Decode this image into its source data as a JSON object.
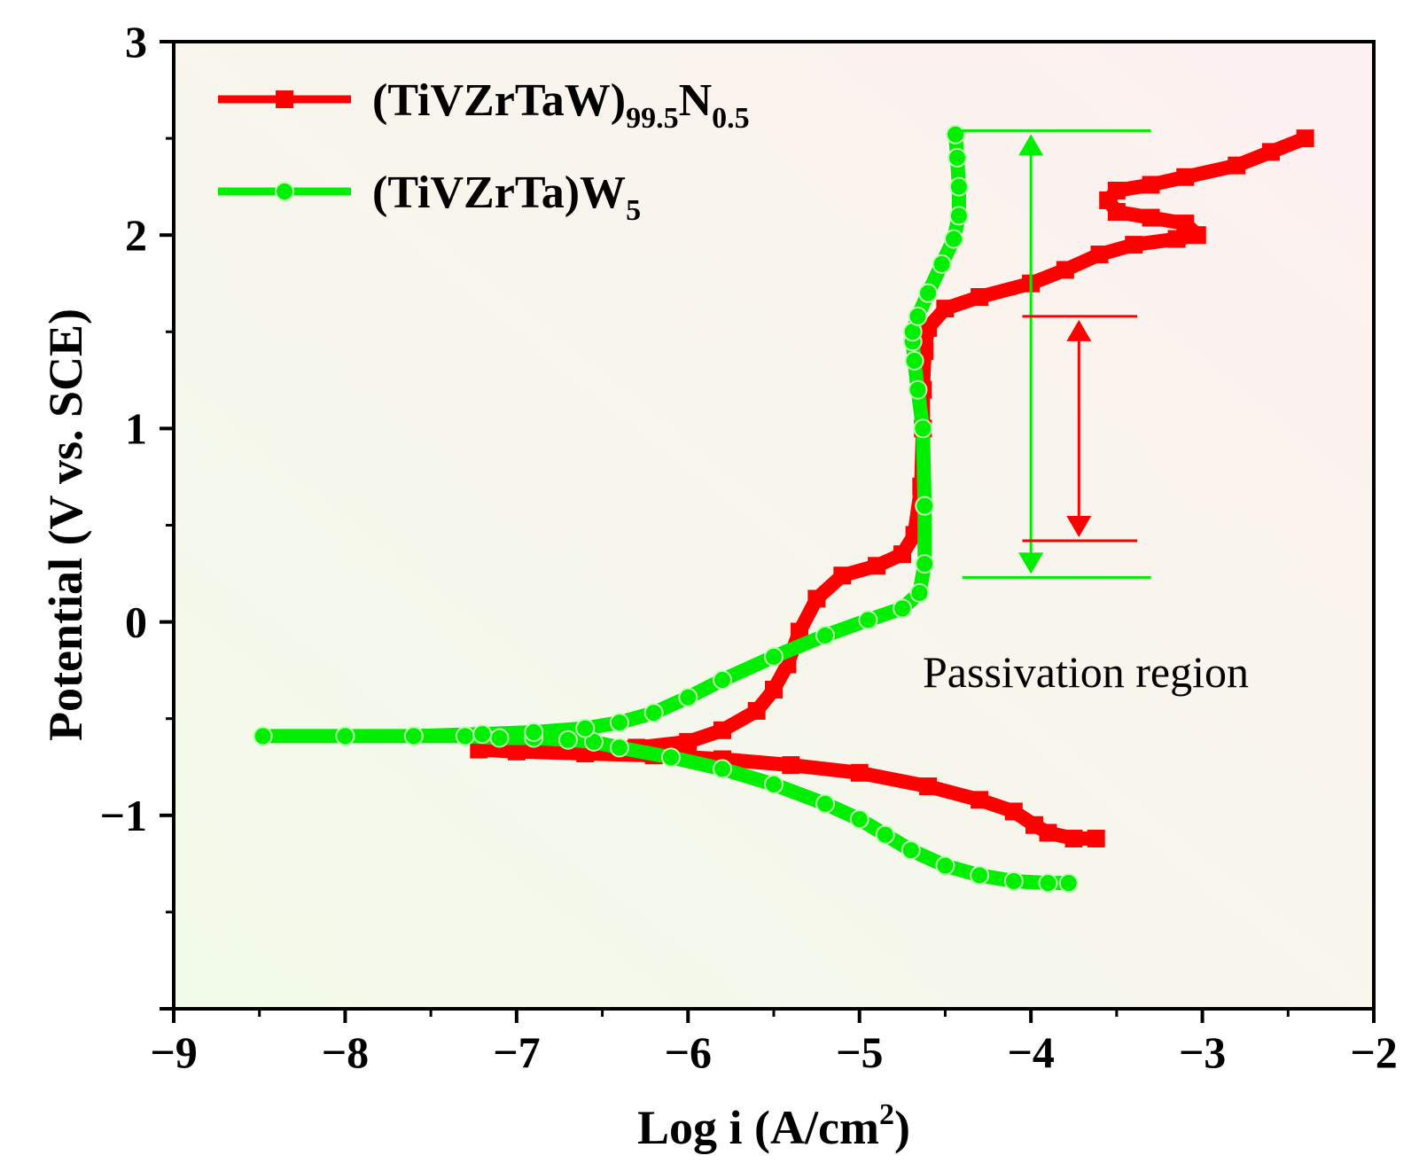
{
  "chart_data": {
    "type": "line",
    "title": "",
    "xlabel": {
      "main": "Log i (A/cm",
      "sup": "2",
      "end": ")"
    },
    "ylabel": "Potential (V vs. SCE)",
    "xlim": [
      -9,
      -2
    ],
    "ylim": [
      -2,
      3
    ],
    "xticks": [
      -9,
      -8,
      -7,
      -6,
      -5,
      -4,
      -3,
      -2
    ],
    "xtick_labels": [
      "−9",
      "−8",
      "−7",
      "−6",
      "−5",
      "−4",
      "−3",
      "−2"
    ],
    "yticks": [
      -1,
      0,
      1,
      2,
      3
    ],
    "ytick_labels": [
      "−1",
      "0",
      "1",
      "2",
      "3"
    ],
    "legend_position": "top-left",
    "background_colors": {
      "start": "#f2fbea",
      "end": "#fdf0f0"
    },
    "series": [
      {
        "name": "(TiVZrTaW)99.5N0.5",
        "legend": {
          "base": "(TiVZrTaW)",
          "sub1": "99.5",
          "mid": "N",
          "sub2": "0.5"
        },
        "color": "#ff0000",
        "marker": "square",
        "x": [
          -3.62,
          -3.75,
          -3.9,
          -3.98,
          -4.1,
          -4.3,
          -4.6,
          -5.0,
          -5.4,
          -5.8,
          -6.2,
          -6.6,
          -7.0,
          -7.22,
          -6.8,
          -6.3,
          -6.0,
          -5.8,
          -5.6,
          -5.5,
          -5.42,
          -5.35,
          -5.25,
          -5.1,
          -4.9,
          -4.75,
          -4.68,
          -4.64,
          -4.63,
          -4.63,
          -4.62,
          -4.6,
          -4.5,
          -4.3,
          -4.0,
          -3.8,
          -3.6,
          -3.4,
          -3.15,
          -3.03,
          -3.1,
          -3.3,
          -3.5,
          -3.55,
          -3.5,
          -3.3,
          -3.1,
          -2.8,
          -2.6,
          -2.4
        ],
        "y": [
          -1.12,
          -1.12,
          -1.09,
          -1.05,
          -0.98,
          -0.92,
          -0.85,
          -0.78,
          -0.74,
          -0.71,
          -0.69,
          -0.68,
          -0.67,
          -0.66,
          -0.66,
          -0.65,
          -0.62,
          -0.56,
          -0.46,
          -0.35,
          -0.22,
          -0.05,
          0.12,
          0.24,
          0.29,
          0.35,
          0.45,
          0.7,
          1.0,
          1.2,
          1.4,
          1.52,
          1.62,
          1.68,
          1.75,
          1.82,
          1.9,
          1.95,
          1.98,
          2.0,
          2.06,
          2.09,
          2.12,
          2.18,
          2.23,
          2.26,
          2.3,
          2.36,
          2.43,
          2.5
        ]
      },
      {
        "name": "(TiVZrTa)W5",
        "legend": {
          "base": "(TiVZrTa)W",
          "sub1": "5"
        },
        "color": "#00ee00",
        "marker": "circle",
        "x": [
          -3.78,
          -3.9,
          -4.1,
          -4.3,
          -4.5,
          -4.7,
          -4.85,
          -5.0,
          -5.2,
          -5.5,
          -5.8,
          -6.1,
          -6.4,
          -6.55,
          -6.7,
          -6.9,
          -7.1,
          -7.3,
          -7.6,
          -8.0,
          -8.48,
          -8.0,
          -7.6,
          -7.2,
          -6.9,
          -6.6,
          -6.4,
          -6.2,
          -6.0,
          -5.8,
          -5.5,
          -5.2,
          -4.95,
          -4.75,
          -4.65,
          -4.62,
          -4.62,
          -4.63,
          -4.66,
          -4.68,
          -4.69,
          -4.69,
          -4.66,
          -4.6,
          -4.52,
          -4.45,
          -4.42,
          -4.42,
          -4.43,
          -4.44
        ],
        "y": [
          -1.35,
          -1.35,
          -1.34,
          -1.31,
          -1.26,
          -1.18,
          -1.1,
          -1.02,
          -0.94,
          -0.84,
          -0.76,
          -0.7,
          -0.65,
          -0.62,
          -0.61,
          -0.6,
          -0.6,
          -0.59,
          -0.59,
          -0.59,
          -0.59,
          -0.59,
          -0.59,
          -0.58,
          -0.57,
          -0.55,
          -0.52,
          -0.47,
          -0.39,
          -0.3,
          -0.18,
          -0.07,
          0.01,
          0.07,
          0.15,
          0.3,
          0.6,
          1.0,
          1.2,
          1.35,
          1.45,
          1.5,
          1.58,
          1.7,
          1.85,
          1.98,
          2.1,
          2.25,
          2.4,
          2.52
        ]
      }
    ],
    "annotations": {
      "text": "Passivation region",
      "green_range": {
        "x": -4.0,
        "y_top": 2.54,
        "y_bottom": 0.23,
        "line_x_start": -4.4,
        "line_x_end": -3.3,
        "color": "#00ee00"
      },
      "red_range": {
        "x": -3.72,
        "y_top": 1.58,
        "y_bottom": 0.42,
        "line_x_start": -4.05,
        "line_x_end": -3.38,
        "color": "#ff0000"
      }
    }
  }
}
